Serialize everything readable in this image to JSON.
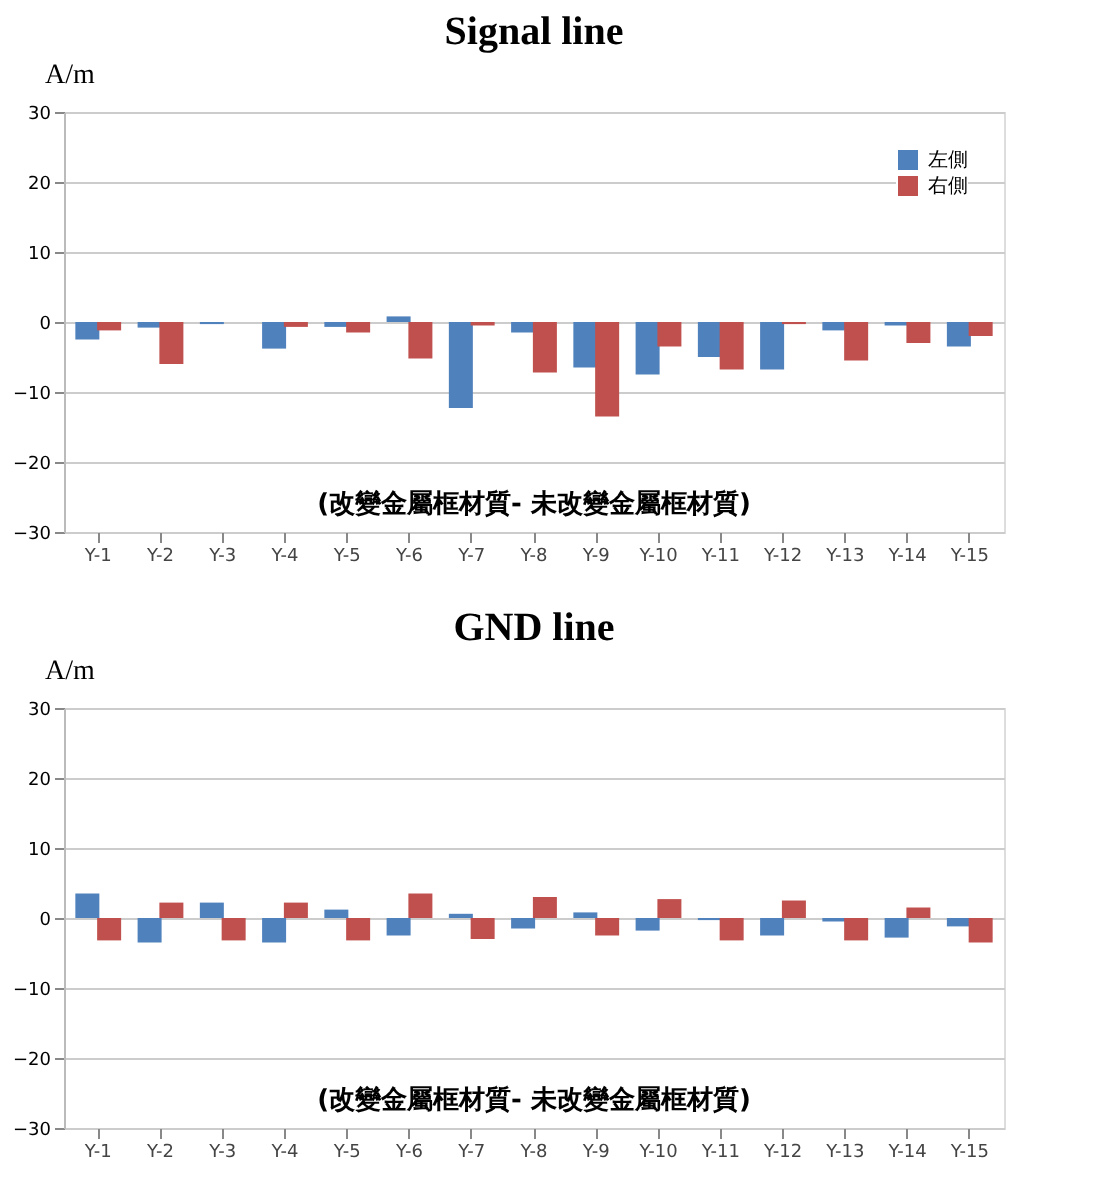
{
  "chart_data": [
    {
      "type": "bar",
      "title": "Signal line",
      "ylabel": "A/m",
      "categories": [
        "Y-1",
        "Y-2",
        "Y-3",
        "Y-4",
        "Y-5",
        "Y-6",
        "Y-7",
        "Y-8",
        "Y-9",
        "Y-10",
        "Y-11",
        "Y-12",
        "Y-13",
        "Y-14",
        "Y-15"
      ],
      "series": [
        {
          "name": "左側",
          "color": "#4f81bd",
          "values": [
            -2.5,
            -0.8,
            -0.3,
            -3.8,
            -0.7,
            0.8,
            -12.3,
            -1.5,
            -6.5,
            -7.5,
            -5,
            -6.8,
            -1.2,
            -0.5,
            -3.5
          ]
        },
        {
          "name": "右側",
          "color": "#c0504d",
          "values": [
            -1.2,
            -6,
            0,
            -0.7,
            -1.5,
            -5.2,
            -0.5,
            -7.2,
            -13.5,
            -3.5,
            -6.8,
            -0.3,
            -5.5,
            -3,
            -2
          ]
        }
      ],
      "ylim": [
        -30,
        30
      ],
      "yticks": [
        -30,
        -20,
        -10,
        0,
        10,
        20,
        30
      ],
      "grid": "y",
      "legend": "top right",
      "annotations": [
        "(改變金屬框材質- 未改變金屬框材質)"
      ]
    },
    {
      "type": "bar",
      "title": "GND line",
      "ylabel": "A/m",
      "categories": [
        "Y-1",
        "Y-2",
        "Y-3",
        "Y-4",
        "Y-5",
        "Y-6",
        "Y-7",
        "Y-8",
        "Y-9",
        "Y-10",
        "Y-11",
        "Y-12",
        "Y-13",
        "Y-14",
        "Y-15"
      ],
      "series": [
        {
          "name": "左側",
          "color": "#4f81bd",
          "values": [
            3.5,
            -3.5,
            2.2,
            -3.5,
            1.2,
            -2.5,
            0.6,
            -1.5,
            0.8,
            -1.8,
            -0.3,
            -2.5,
            -0.5,
            -2.8,
            -1.2
          ]
        },
        {
          "name": "右側",
          "color": "#c0504d",
          "values": [
            -3.2,
            2.2,
            -3.2,
            2.2,
            -3.2,
            3.5,
            -3,
            3,
            -2.5,
            2.7,
            -3.2,
            2.5,
            -3.2,
            1.5,
            -3.5
          ]
        }
      ],
      "ylim": [
        -30,
        30
      ],
      "yticks": [
        -30,
        -20,
        -10,
        0,
        10,
        20,
        30
      ],
      "grid": "y",
      "legend": "top right",
      "annotations": [
        "(改變金屬框材質- 未改變金屬框材質)"
      ]
    }
  ]
}
